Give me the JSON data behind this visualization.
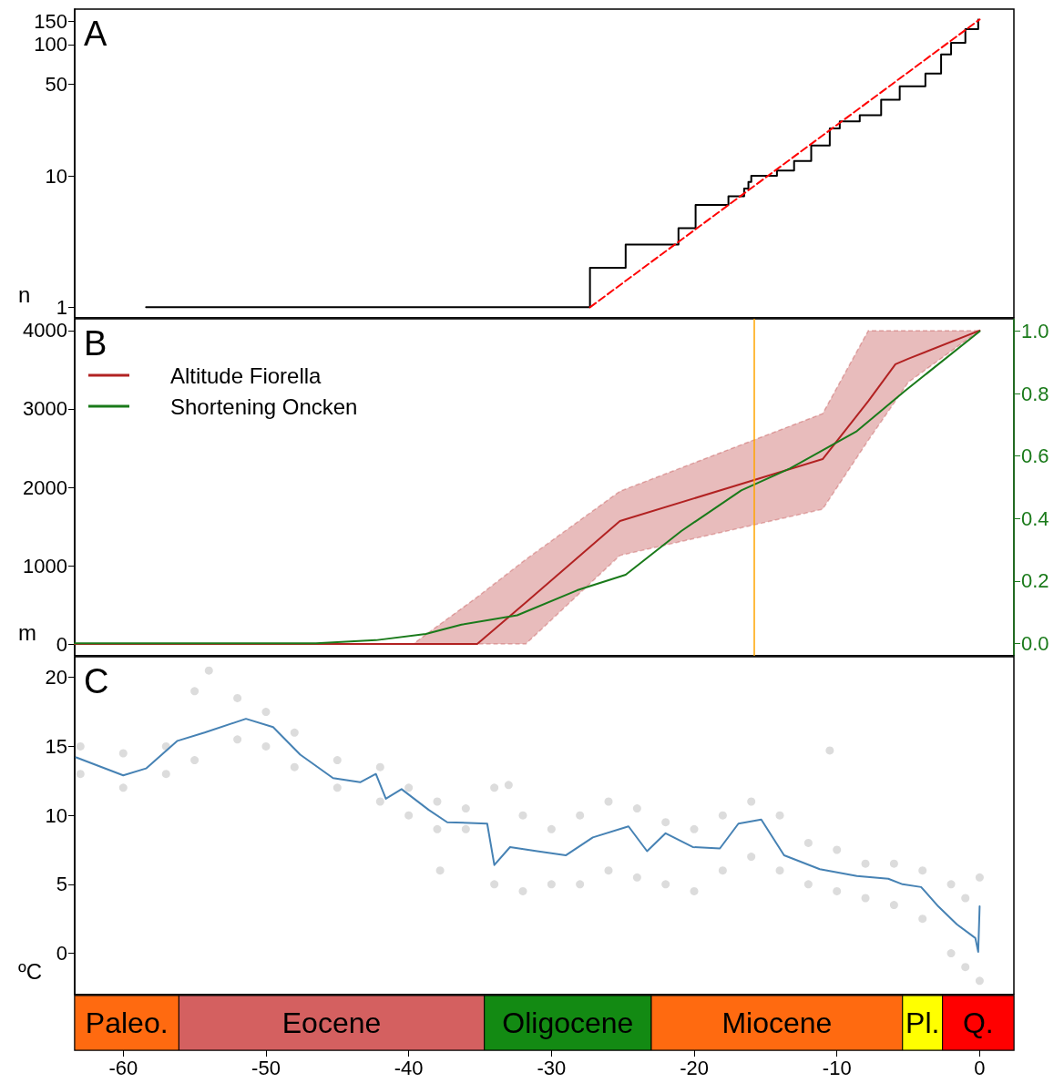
{
  "chart_data": [
    {
      "type": "step",
      "xlim": [
        -63.4,
        2.4
      ],
      "ylim": [
        0.83,
        186
      ],
      "yticks": [
        1,
        10,
        50,
        100,
        150
      ],
      "log": "y",
      "ylabel": "n",
      "annotations": [
        "A"
      ],
      "tick_labels": "y",
      "marker": "none",
      "series": [
        {
          "type": "step",
          "color": "#000000",
          "x": [
            -58.4,
            -27.3,
            -24.8,
            -21.1,
            -19.9,
            -17.6,
            -16.5,
            -16.2,
            -16.0,
            -14.2,
            -13.0,
            -11.8,
            -10.5,
            -9.8,
            -8.4,
            -6.9,
            -5.6,
            -3.8,
            -2.7,
            -2.0,
            -1.0,
            -0.1
          ],
          "values": [
            1,
            2,
            3,
            4,
            6,
            7,
            8,
            9,
            10,
            11,
            13,
            17,
            23,
            26,
            29,
            38,
            48,
            60,
            84,
            103,
            131,
            155
          ]
        },
        {
          "type": "line",
          "color": "#ff0000",
          "line_style": "dashed",
          "x": [
            -27.3,
            0
          ],
          "values": [
            1,
            155
          ]
        }
      ]
    },
    {
      "type": "line",
      "xlim": [
        -63.4,
        2.4
      ],
      "ylim": [
        -150,
        4150
      ],
      "yticks": [
        0,
        1000,
        2000,
        3000,
        4000
      ],
      "y2lim": [
        -0.04,
        1.04
      ],
      "y2ticks": [
        {
          "value": 0,
          "label": "0.0"
        },
        0.2,
        0.4,
        0.6,
        0.8,
        {
          "value": 1,
          "label": "1.0"
        }
      ],
      "ylabel": "m",
      "annotations": [
        "B"
      ],
      "legend": "top left",
      "tick_labels": "y",
      "marker": "none",
      "ref_lines": [
        {
          "axis": "x",
          "value": -15.8,
          "color": "#ffa500"
        }
      ],
      "series": [
        {
          "name": "Altitude Fiorella",
          "color": "#b22222",
          "x": [
            -63.4,
            -39.7,
            -35.2,
            -31.8,
            -25.2,
            -11.0,
            -7.8,
            -5.9,
            -5.0,
            0
          ],
          "values": [
            0,
            0,
            0,
            530,
            1570,
            2360,
            3100,
            3570,
            3640,
            4000
          ],
          "lower": [
            0,
            0,
            0,
            0,
            1130,
            1720,
            2600,
            3100,
            3340,
            4000
          ],
          "upper": [
            0,
            0,
            600,
            1080,
            1950,
            2940,
            4000,
            4000,
            4000,
            4000
          ]
        },
        {
          "name": "Shortening Oncken",
          "color": "#1a7a1a",
          "axis": "y2",
          "x": [
            -63.4,
            -46.5,
            -42.3,
            -38.8,
            -36.3,
            -32.4,
            -28.2,
            -24.8,
            -20.9,
            -16.7,
            -13.3,
            -8.6,
            -5.2,
            0
          ],
          "values": [
            0,
            0,
            0.01,
            0.03,
            0.06,
            0.09,
            0.17,
            0.22,
            0.36,
            0.49,
            0.56,
            0.68,
            0.81,
            1.0
          ]
        }
      ]
    },
    {
      "type": "line",
      "xlim": [
        -63.4,
        2.4
      ],
      "ylim": [
        -3,
        21.5
      ],
      "yticks": [
        0,
        5,
        10,
        15,
        20
      ],
      "ylabel": "ºC",
      "annotations": [
        "C"
      ],
      "tick_labels": "y",
      "series": [
        {
          "type": "scatter",
          "marker": "circle",
          "color": "#dcdcdc",
          "x": [
            -63,
            -63,
            -60,
            -60,
            -57,
            -57,
            -55,
            -54,
            -55,
            -52,
            -52,
            -50,
            -50,
            -48,
            -48,
            -45,
            -45,
            -42,
            -42,
            -40,
            -40,
            -38,
            -38,
            -36,
            -36,
            -34,
            -34,
            -32,
            -32,
            -30,
            -30,
            -28,
            -28,
            -26,
            -26,
            -24,
            -24,
            -22,
            -22,
            -20,
            -20,
            -18,
            -18,
            -16,
            -16,
            -14,
            -14,
            -12,
            -12,
            -10,
            -10,
            -8,
            -8,
            -6,
            -6,
            -4,
            -4,
            -2,
            -2,
            -1,
            -1,
            0,
            0,
            -33,
            -10.5,
            -37.8
          ],
          "values": [
            15,
            13,
            14.5,
            12,
            15,
            13,
            19,
            20.5,
            14,
            18.5,
            15.5,
            17.5,
            15,
            16,
            13.5,
            14,
            12,
            13.5,
            11,
            12,
            10,
            11,
            9,
            10.5,
            9,
            12,
            5,
            10,
            4.5,
            9,
            5,
            10,
            5,
            11,
            6,
            10.5,
            5.5,
            9.5,
            5,
            9,
            4.5,
            10,
            6,
            11,
            7,
            10,
            6,
            8,
            5,
            7.5,
            4.5,
            6.5,
            4,
            6.5,
            3.5,
            6,
            2.5,
            5,
            0,
            4,
            -1,
            5.5,
            -2,
            12.2,
            14.7,
            6
          ]
        },
        {
          "type": "line",
          "marker": "none",
          "color": "#4682b4",
          "x": [
            -63.3,
            -60,
            -58.4,
            -56.2,
            -54.3,
            -51.4,
            -49.5,
            -47.6,
            -45.3,
            -43.4,
            -42.3,
            -41.6,
            -40.5,
            -38.6,
            -37.3,
            -34.5,
            -34.0,
            -32.9,
            -31.0,
            -29.0,
            -27.1,
            -24.6,
            -23.3,
            -22.0,
            -20.1,
            -18.2,
            -16.9,
            -15.3,
            -13.7,
            -11.2,
            -8.6,
            -6.4,
            -5.4,
            -4.1,
            -2.9,
            -1.6,
            -0.3,
            -0.1,
            0
          ],
          "values": [
            14.2,
            12.9,
            13.4,
            15.4,
            16.0,
            17.0,
            16.4,
            14.4,
            12.7,
            12.4,
            13.0,
            11.2,
            11.9,
            10.4,
            9.5,
            9.4,
            6.4,
            7.7,
            7.4,
            7.1,
            8.4,
            9.2,
            7.4,
            8.7,
            7.7,
            7.6,
            9.4,
            9.7,
            7.1,
            6.1,
            5.6,
            5.4,
            5.0,
            4.8,
            3.4,
            2.1,
            1.1,
            0.1,
            3.4
          ]
        }
      ]
    },
    {
      "type": "bar",
      "orientation": "horizontal",
      "categories": [
        null
      ],
      "xlim": [
        -63.4,
        2.4
      ],
      "xticks": [
        -60,
        -50,
        -40,
        -30,
        -20,
        -10,
        0
      ],
      "tick_labels": "x",
      "series": [
        {
          "name": "Paleo.",
          "color": "#ff6a10",
          "base": [
            -63.4
          ],
          "values": [
            7.3
          ]
        },
        {
          "name": "Eocene",
          "color": "#d46060",
          "base": [
            -56.1
          ],
          "values": [
            21.4
          ]
        },
        {
          "name": "Oligocene",
          "color": "#138a13",
          "base": [
            -34.7
          ],
          "values": [
            11.7
          ]
        },
        {
          "name": "Miocene",
          "color": "#ff6a10",
          "base": [
            -23.0
          ],
          "values": [
            17.6
          ]
        },
        {
          "name": "Pl.",
          "color": "#ffff00",
          "base": [
            -5.4
          ],
          "values": [
            2.8
          ]
        },
        {
          "name": "Q.",
          "color": "#ff0000",
          "base": [
            -2.6
          ],
          "values": [
            5.0
          ]
        }
      ]
    }
  ]
}
